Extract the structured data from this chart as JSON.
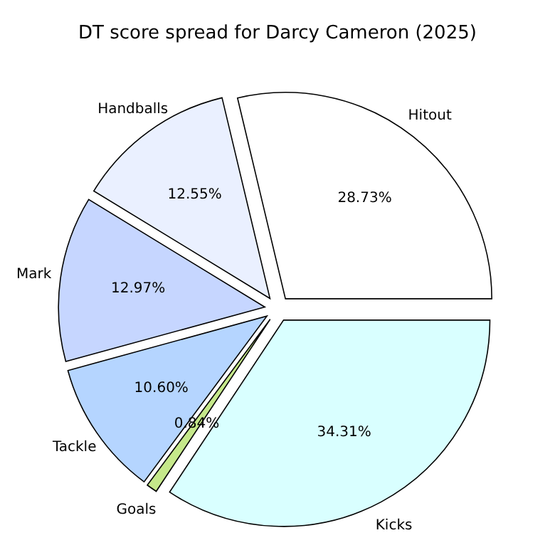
{
  "chart_data": {
    "type": "pie",
    "title": "DT score spread for Darcy Cameron (2025)",
    "categories": [
      "Hitout",
      "Handballs",
      "Mark",
      "Tackle",
      "Goals",
      "Kicks"
    ],
    "values": [
      28.73,
      12.55,
      12.97,
      10.6,
      0.84,
      34.31
    ],
    "value_labels": [
      "28.73%",
      "12.55%",
      "12.97%",
      "10.60%",
      "0.84%",
      "34.31%"
    ],
    "colors": [
      "#ffffff",
      "#eaf0ff",
      "#c6d6ff",
      "#b5d5ff",
      "#c5e88a",
      "#d9ffff"
    ],
    "legend": false
  }
}
